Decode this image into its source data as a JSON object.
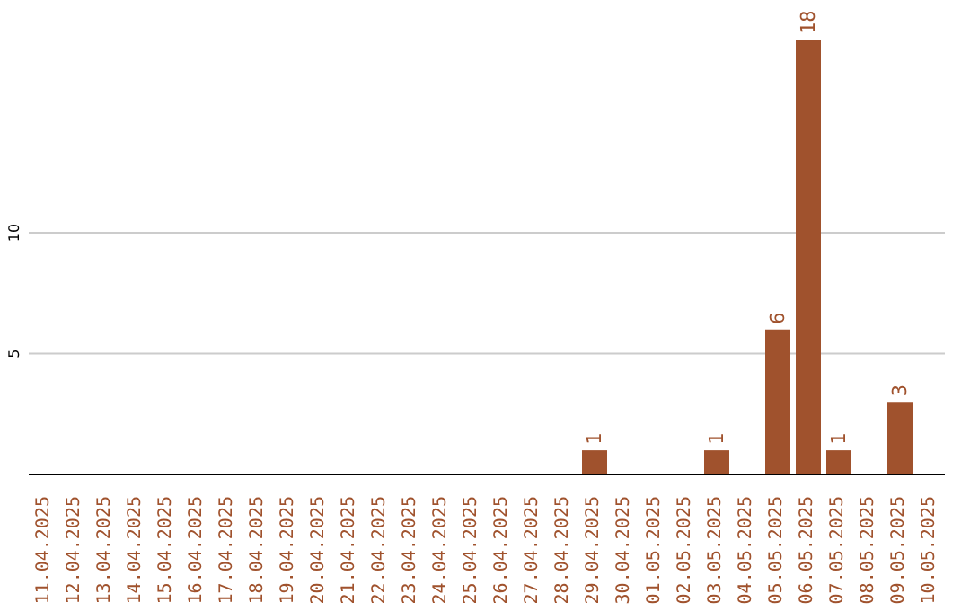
{
  "chart_data": {
    "type": "bar",
    "categories": [
      "11.04.2025",
      "12.04.2025",
      "13.04.2025",
      "14.04.2025",
      "15.04.2025",
      "16.04.2025",
      "17.04.2025",
      "18.04.2025",
      "19.04.2025",
      "20.04.2025",
      "21.04.2025",
      "22.04.2025",
      "23.04.2025",
      "24.04.2025",
      "25.04.2025",
      "26.04.2025",
      "27.04.2025",
      "28.04.2025",
      "29.04.2025",
      "30.04.2025",
      "01.05.2025",
      "02.05.2025",
      "03.05.2025",
      "04.05.2025",
      "05.05.2025",
      "06.05.2025",
      "07.05.2025",
      "08.05.2025",
      "09.05.2025",
      "10.05.2025"
    ],
    "values": [
      0,
      0,
      0,
      0,
      0,
      0,
      0,
      0,
      0,
      0,
      0,
      0,
      0,
      0,
      0,
      0,
      0,
      0,
      1,
      0,
      0,
      0,
      1,
      0,
      6,
      18,
      1,
      0,
      3,
      0
    ],
    "value_labels": [
      null,
      null,
      null,
      null,
      null,
      null,
      null,
      null,
      null,
      null,
      null,
      null,
      null,
      null,
      null,
      null,
      null,
      null,
      "1",
      null,
      null,
      null,
      "1",
      null,
      "6",
      "18",
      "1",
      null,
      "3",
      null
    ],
    "color": "#a0522d",
    "ylim": [
      0,
      18
    ],
    "yticks": [
      5,
      10
    ],
    "grid": "y"
  }
}
